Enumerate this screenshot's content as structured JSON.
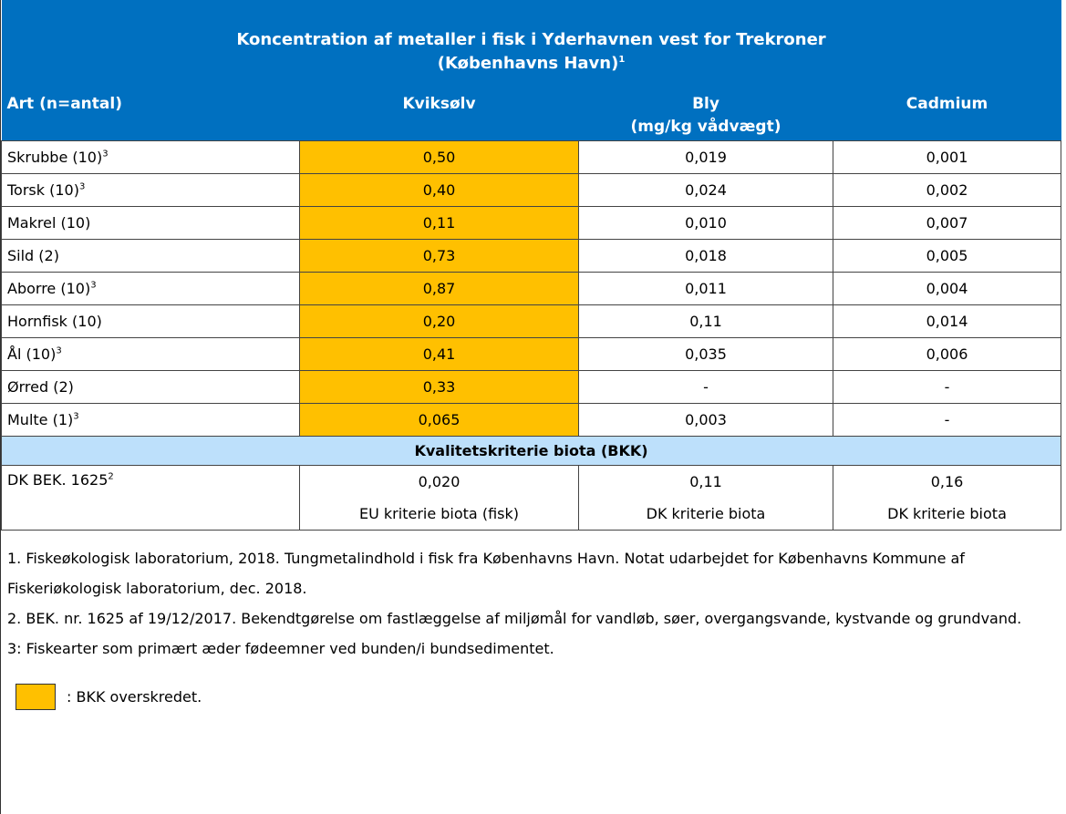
{
  "header": {
    "title": "Koncentration af metaller i fisk i Yderhavnen vest for Trekroner",
    "subtitle": "(Københavns Havn)",
    "subtitle_sup": "1",
    "columns": [
      "Art (n=antal)",
      "Kviksølv",
      "Bly",
      "Cadmium"
    ],
    "unit": "(mg/kg vådvægt)"
  },
  "table": {
    "highlight_column": 1,
    "highlight_color": "#ffc000",
    "rows": [
      {
        "name": "Skrubbe (10)",
        "sup": "3",
        "values": [
          "0,50",
          "0,019",
          "0,001"
        ]
      },
      {
        "name": "Torsk (10)",
        "sup": "3",
        "values": [
          "0,40",
          "0,024",
          "0,002"
        ]
      },
      {
        "name": "Makrel (10)",
        "values": [
          "0,11",
          "0,010",
          "0,007"
        ]
      },
      {
        "name": "Sild (2)",
        "values": [
          "0,73",
          "0,018",
          "0,005"
        ]
      },
      {
        "name": "Aborre (10)",
        "sup": "3",
        "values": [
          "0,87",
          "0,011",
          "0,004"
        ]
      },
      {
        "name": "Hornfisk (10)",
        "values": [
          "0,20",
          "0,11",
          "0,014"
        ]
      },
      {
        "name": "Ål (10)",
        "sup": "3",
        "values": [
          "0,41",
          "0,035",
          "0,006"
        ]
      },
      {
        "name": "Ørred (2)",
        "values": [
          "0,33",
          "-",
          "-"
        ]
      },
      {
        "name": "Multe (1)",
        "sup": "3",
        "values": [
          "0,065",
          "0,003",
          "-"
        ]
      }
    ]
  },
  "criteria": {
    "title": "Kvalitetskriterie biota (BKK)",
    "name": "DK BEK. 1625",
    "sup": "2",
    "values": [
      "0,020",
      "0,11",
      "0,16"
    ],
    "notes": [
      "EU kriterie biota (fisk)",
      "DK kriterie biota",
      "DK kriterie biota"
    ]
  },
  "footnotes": [
    "1. Fiskeøkologisk laboratorium, 2018. Tungmetalindhold i fisk fra Københavns Havn. Notat udarbejdet for Københavns Kommune af Fiskeriøkologisk laboratorium, dec. 2018.",
    "2. BEK. nr. 1625 af 19/12/2017. Bekendtgørelse om fastlæggelse af miljømål for vandløb, søer, overgangsvande, kystvande og grundvand.",
    "3: Fiskearter som primært æder fødeemner ved bunden/i bundsedimentet."
  ],
  "legend": {
    "text": ":  BKK overskredet."
  }
}
